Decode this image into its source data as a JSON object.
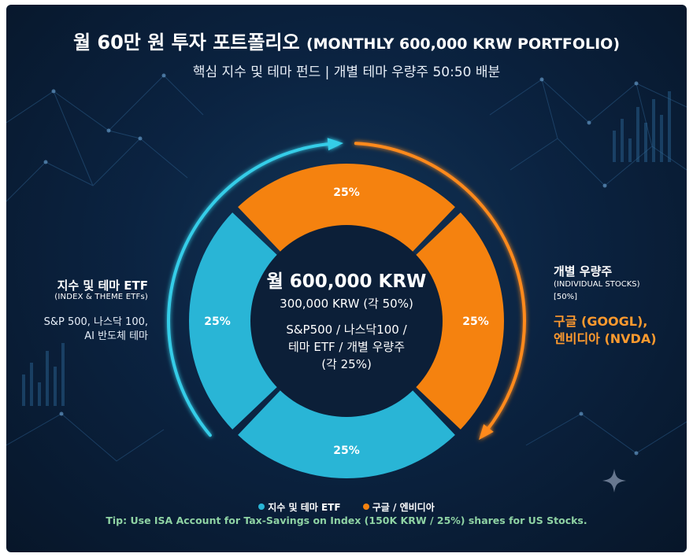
{
  "header": {
    "title_ko": "월 60만 원 투자 포트폴리오",
    "title_en": "(MONTHLY 600,000 KRW PORTFOLIO)",
    "subtitle": "핵심 지수 및 테마 펀드 | 개별 테마 우량주 50:50 배분"
  },
  "center": {
    "line1": "월 600,000 KRW",
    "line2": "300,000 KRW (각 50%)",
    "line3": "S&P500 / 나스닥100 /",
    "line4": "테마 ETF / 개별 우량주",
    "line5": "(각 25%)"
  },
  "left_label": {
    "title": "지수 및 테마 ETF",
    "subtitle": "(INDEX & THEME ETFs)",
    "detail1": "S&P 500, 나스닥 100,",
    "detail2": "AI 반도체 테마"
  },
  "right_label": {
    "title": "개별 우량주",
    "subtitle": "(INDIVIDUAL STOCKS)",
    "share": "[50%]",
    "stock1": "구글 (GOOGL),",
    "stock2": "엔비디아 (NVDA)"
  },
  "legend": {
    "item1": "지수 및 테마 ETF",
    "item2": "구글 / 엔비디아"
  },
  "tip": "Tip: Use ISA Account for Tax-Savings on Index (150K KRW / 25%) shares for US Stocks.",
  "colors": {
    "etf": "#29b5d6",
    "stocks": "#f5820f",
    "background": "#0b2341"
  },
  "chart_data": {
    "type": "pie",
    "categories": [
      "지수 및 테마 ETF",
      "구글 / 엔비디아"
    ],
    "slices": [
      {
        "group": "구글 / 엔비디아",
        "value": 25,
        "label": "25%"
      },
      {
        "group": "구글 / 엔비디아",
        "value": 25,
        "label": "25%"
      },
      {
        "group": "지수 및 테마 ETF",
        "value": 25,
        "label": "25%"
      },
      {
        "group": "지수 및 테마 ETF",
        "value": 25,
        "label": "25%"
      }
    ],
    "legend": "bottom"
  }
}
